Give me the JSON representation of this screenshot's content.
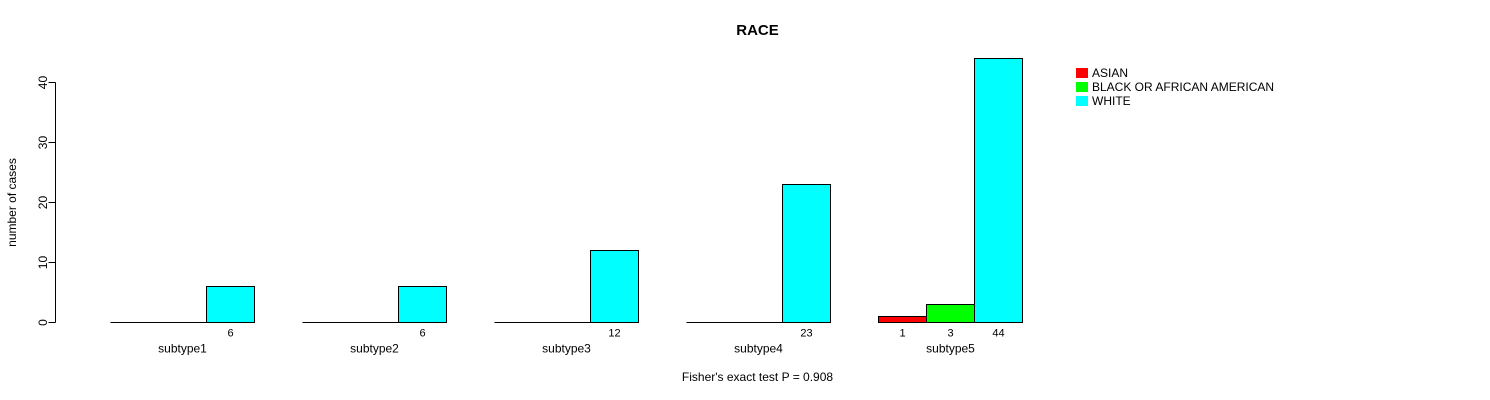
{
  "window": {
    "background_color": "#ffffff"
  },
  "chart_data": {
    "type": "bar",
    "title": "RACE",
    "xlabel": "",
    "ylabel": "number of cases",
    "footer": "Fisher's exact test P = 0.908",
    "grid": false,
    "legend_position": "top-right",
    "yticks": [
      0,
      10,
      20,
      30,
      40
    ],
    "ylim": [
      0,
      44
    ],
    "axis_color": "#000000",
    "bar_border_color": "#000000",
    "categories": [
      "subtype1",
      "subtype2",
      "subtype3",
      "subtype4",
      "subtype5"
    ],
    "series": [
      {
        "name": "ASIAN",
        "color": "#ff0000",
        "values": [
          0,
          0,
          0,
          0,
          1
        ]
      },
      {
        "name": "BLACK OR AFRICAN AMERICAN",
        "color": "#00ff00",
        "values": [
          0,
          0,
          0,
          0,
          3
        ]
      },
      {
        "name": "WHITE",
        "color": "#00ffff",
        "values": [
          6,
          6,
          12,
          23,
          44
        ]
      }
    ],
    "value_labels_shown_for_nonzero_bars": true
  }
}
